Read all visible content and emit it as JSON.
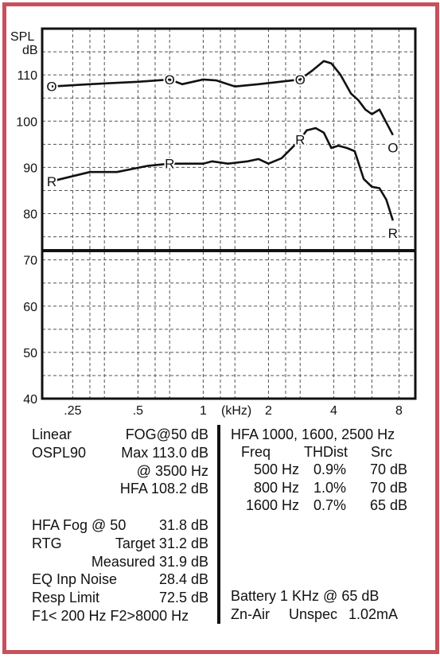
{
  "colors": {
    "border": "#c9505a",
    "line": "#111111",
    "grid": "#555555"
  },
  "chart_data": {
    "type": "line",
    "ylabel_line1": "SPL",
    "ylabel_line2": "dB",
    "ylim": [
      40,
      120
    ],
    "yticks": [
      {
        "v": 110,
        "label": "110"
      },
      {
        "v": 100,
        "label": "100"
      },
      {
        "v": 90,
        "label": "90"
      },
      {
        "v": 80,
        "label": "80"
      },
      {
        "v": 70,
        "label": "70"
      },
      {
        "v": 60,
        "label": "60"
      },
      {
        "v": 50,
        "label": "50"
      },
      {
        "v": 40,
        "label": "40"
      }
    ],
    "xticks": [
      {
        "v": 0.25,
        "label": ".25"
      },
      {
        "v": 0.5,
        "label": ".5"
      },
      {
        "v": 1,
        "label": "1"
      },
      {
        "v": 2,
        "label": "2"
      },
      {
        "v": 4,
        "label": "4"
      },
      {
        "v": 8,
        "label": "8"
      }
    ],
    "xunit": "(kHz)",
    "reference_line_db": 72,
    "series": [
      {
        "name": "O",
        "marker": "O",
        "markers_at": [
          0.2,
          0.7,
          2.8,
          7.5
        ],
        "points": [
          [
            0.2,
            107.5
          ],
          [
            0.3,
            108
          ],
          [
            0.5,
            108.5
          ],
          [
            0.7,
            109
          ],
          [
            0.8,
            108
          ],
          [
            1.0,
            109
          ],
          [
            1.15,
            108.8
          ],
          [
            1.4,
            107.5
          ],
          [
            1.8,
            108
          ],
          [
            2.8,
            109
          ],
          [
            3.2,
            111
          ],
          [
            3.6,
            113
          ],
          [
            3.9,
            112.5
          ],
          [
            4.3,
            110
          ],
          [
            4.8,
            106
          ],
          [
            5.2,
            104.5
          ],
          [
            5.6,
            102.5
          ],
          [
            6.0,
            101.5
          ],
          [
            6.5,
            102.5
          ],
          [
            7.5,
            97
          ]
        ]
      },
      {
        "name": "R",
        "marker": "R",
        "markers_at": [
          0.2,
          0.7,
          2.8,
          7.5
        ],
        "points": [
          [
            0.2,
            87
          ],
          [
            0.3,
            89
          ],
          [
            0.4,
            89
          ],
          [
            0.55,
            90.3
          ],
          [
            0.7,
            90.8
          ],
          [
            1.0,
            90.8
          ],
          [
            1.1,
            91.3
          ],
          [
            1.3,
            90.8
          ],
          [
            1.6,
            91.3
          ],
          [
            1.8,
            91.8
          ],
          [
            2.0,
            90.8
          ],
          [
            2.3,
            92
          ],
          [
            2.8,
            96
          ],
          [
            3.0,
            98
          ],
          [
            3.3,
            98.5
          ],
          [
            3.6,
            97.5
          ],
          [
            3.9,
            94.2
          ],
          [
            4.2,
            94.7
          ],
          [
            4.6,
            94.2
          ],
          [
            5.0,
            93.5
          ],
          [
            5.5,
            87.5
          ],
          [
            6.0,
            85.8
          ],
          [
            6.5,
            85.5
          ],
          [
            7.0,
            83
          ],
          [
            7.5,
            78.5
          ]
        ]
      }
    ]
  },
  "left_panel": [
    {
      "a": "Linear",
      "b": "FOG@50 dB"
    },
    {
      "a": "OSPL90",
      "b": "Max 113.0 dB"
    },
    {
      "a": "",
      "b": "@ 3500 Hz"
    },
    {
      "a": "",
      "b": "HFA 108.2 dB"
    },
    {
      "a": "",
      "b": ""
    },
    {
      "a": "HFA Fog @ 50",
      "b": "31.8 dB"
    },
    {
      "a": "RTG",
      "b": "Target  31.2 dB"
    },
    {
      "a": "",
      "b": "Measured  31.9 dB"
    },
    {
      "a": "EQ Inp Noise",
      "b": "28.4 dB"
    },
    {
      "a": "Resp Limit",
      "b": "72.5 dB"
    },
    {
      "a": "F1< 200 Hz F2>8000 Hz",
      "b": ""
    }
  ],
  "right_panel": {
    "title": "HFA 1000, 1600, 2500 Hz",
    "headers": [
      "Freq",
      "THDist",
      "Src"
    ],
    "rows": [
      [
        "500 Hz",
        "0.9%",
        "70 dB"
      ],
      [
        "800 Hz",
        "1.0%",
        "70 dB"
      ],
      [
        "1600 Hz",
        "0.7%",
        "65 dB"
      ]
    ],
    "battery_line": "Battery 1 KHz  @ 65 dB",
    "battery_type": "Zn-Air",
    "battery_spec": "Unspec",
    "battery_current": "1.02mA"
  }
}
